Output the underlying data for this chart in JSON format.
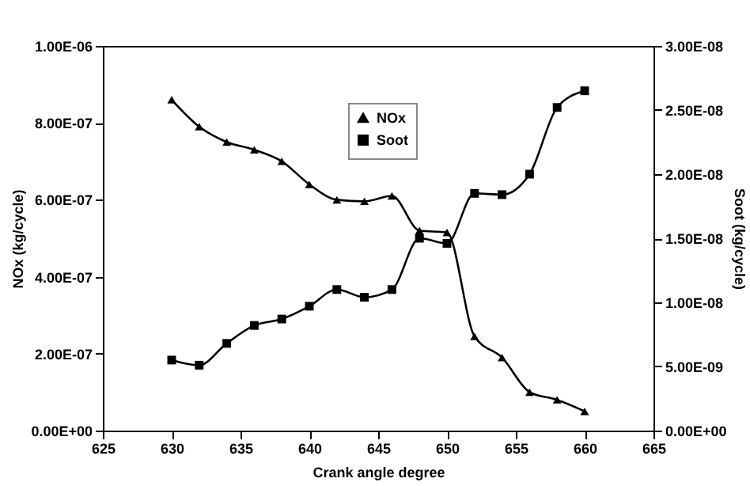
{
  "chart_data": {
    "type": "line",
    "xlabel": "Crank angle degree",
    "ylabel": "NOx (kg/cycle)",
    "y2label": "Soot (kg/cycle)",
    "x": [
      630,
      632,
      634,
      636,
      638,
      640,
      642,
      644,
      646,
      648,
      650,
      652,
      654,
      656,
      658,
      660
    ],
    "series": [
      {
        "name": "NOx",
        "color": "#000000",
        "marker": "triangle",
        "values": [
          8.6e-07,
          7.9e-07,
          7.5e-07,
          7.3e-07,
          7e-07,
          6.4e-07,
          6e-07,
          5.96e-07,
          6.1e-07,
          5.2e-07,
          5.15e-07,
          2.45e-07,
          1.9e-07,
          1e-07,
          8e-08,
          5e-08
        ]
      },
      {
        "name": "Soot",
        "color": "#000000",
        "marker": "square",
        "axis": "y2",
        "values": [
          5.5e-09,
          5.1e-09,
          6.8e-09,
          8.2e-09,
          8.7e-09,
          9.7e-09,
          1.1e-08,
          1.04e-08,
          1.1e-08,
          1.5e-08,
          1.46e-08,
          1.85e-08,
          1.84e-08,
          2e-08,
          2.52e-08,
          2.65e-08
        ]
      }
    ],
    "xlim": [
      625,
      665
    ],
    "xticks": [
      625,
      630,
      635,
      640,
      645,
      650,
      655,
      660,
      665
    ],
    "ylim": [
      0,
      1e-06
    ],
    "yticks": [
      {
        "value": 0,
        "label": "0.00E+00"
      },
      {
        "value": 2e-07,
        "label": "2.00E-07"
      },
      {
        "value": 4e-07,
        "label": "4.00E-07"
      },
      {
        "value": 6e-07,
        "label": "6.00E-07"
      },
      {
        "value": 8e-07,
        "label": "8.00E-07"
      },
      {
        "value": 1e-06,
        "label": "1.00E-06"
      }
    ],
    "y2lim": [
      0,
      3e-08
    ],
    "y2ticks": [
      {
        "value": 0,
        "label": "0.00E+00"
      },
      {
        "value": 5e-09,
        "label": "5.00E-09"
      },
      {
        "value": 1e-08,
        "label": "1.00E-08"
      },
      {
        "value": 1.5e-08,
        "label": "1.50E-08"
      },
      {
        "value": 2e-08,
        "label": "2.00E-08"
      },
      {
        "value": 2.5e-08,
        "label": "2.50E-08"
      },
      {
        "value": 3e-08,
        "label": "3.00E-08"
      }
    ],
    "grid": false,
    "legend": "top",
    "line_style": "solid"
  }
}
